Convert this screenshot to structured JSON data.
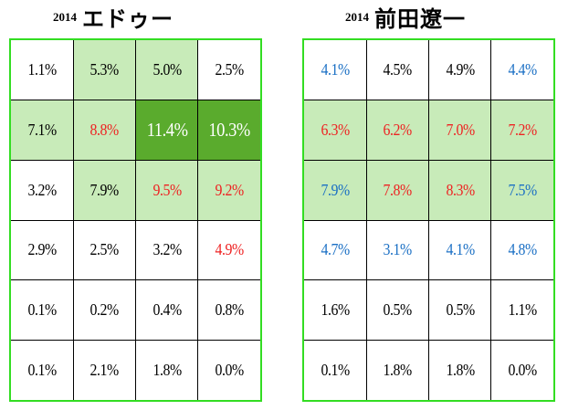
{
  "colors": {
    "border": "#33dd22",
    "light_green": "#c8ebb9",
    "dark_green": "#5aab2d",
    "text_black": "#000000",
    "text_red": "#ee2222",
    "text_blue": "#1a6fc4",
    "text_white": "#ffffff"
  },
  "chart_data": [
    {
      "type": "heatmap",
      "title_year": "2014",
      "title_name": "エドゥー",
      "rows": 6,
      "cols": 4,
      "values": [
        [
          "1.1%",
          "5.3%",
          "5.0%",
          "2.5%"
        ],
        [
          "7.1%",
          "8.8%",
          "11.4%",
          "10.3%"
        ],
        [
          "3.2%",
          "7.9%",
          "9.5%",
          "9.2%"
        ],
        [
          "2.9%",
          "2.5%",
          "3.2%",
          "4.9%"
        ],
        [
          "0.1%",
          "0.2%",
          "0.4%",
          "0.8%"
        ],
        [
          "0.1%",
          "2.1%",
          "1.8%",
          "0.0%"
        ]
      ],
      "fill": [
        [
          "none",
          "light",
          "light",
          "none"
        ],
        [
          "light",
          "light",
          "dark",
          "dark"
        ],
        [
          "none",
          "light",
          "light",
          "light"
        ],
        [
          "none",
          "none",
          "none",
          "none"
        ],
        [
          "none",
          "none",
          "none",
          "none"
        ],
        [
          "none",
          "none",
          "none",
          "none"
        ]
      ],
      "text_color": [
        [
          "black",
          "black",
          "black",
          "black"
        ],
        [
          "black",
          "red",
          "white",
          "white"
        ],
        [
          "black",
          "black",
          "red",
          "red"
        ],
        [
          "black",
          "black",
          "black",
          "red"
        ],
        [
          "black",
          "black",
          "black",
          "black"
        ],
        [
          "black",
          "black",
          "black",
          "black"
        ]
      ]
    },
    {
      "type": "heatmap",
      "title_year": "2014",
      "title_name": "前田遼一",
      "rows": 6,
      "cols": 4,
      "values": [
        [
          "4.1%",
          "4.5%",
          "4.9%",
          "4.4%"
        ],
        [
          "6.3%",
          "6.2%",
          "7.0%",
          "7.2%"
        ],
        [
          "7.9%",
          "7.8%",
          "8.3%",
          "7.5%"
        ],
        [
          "4.7%",
          "3.1%",
          "4.1%",
          "4.8%"
        ],
        [
          "1.6%",
          "0.5%",
          "0.5%",
          "1.1%"
        ],
        [
          "0.1%",
          "1.8%",
          "1.8%",
          "0.0%"
        ]
      ],
      "fill": [
        [
          "none",
          "none",
          "none",
          "none"
        ],
        [
          "light",
          "light",
          "light",
          "light"
        ],
        [
          "light",
          "light",
          "light",
          "light"
        ],
        [
          "none",
          "none",
          "none",
          "none"
        ],
        [
          "none",
          "none",
          "none",
          "none"
        ],
        [
          "none",
          "none",
          "none",
          "none"
        ]
      ],
      "text_color": [
        [
          "blue",
          "black",
          "black",
          "blue"
        ],
        [
          "red",
          "red",
          "red",
          "red"
        ],
        [
          "blue",
          "red",
          "red",
          "blue"
        ],
        [
          "blue",
          "blue",
          "blue",
          "blue"
        ],
        [
          "black",
          "black",
          "black",
          "black"
        ],
        [
          "black",
          "black",
          "black",
          "black"
        ]
      ]
    }
  ]
}
